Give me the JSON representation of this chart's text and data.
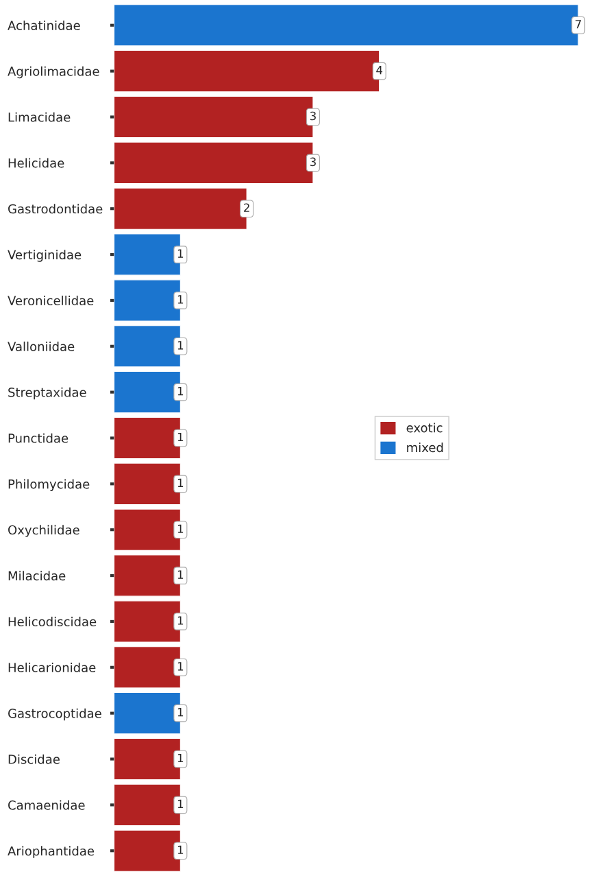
{
  "chart_data": {
    "type": "bar",
    "orientation": "horizontal",
    "categories": [
      "Achatinidae",
      "Agriolimacidae",
      "Limacidae",
      "Helicidae",
      "Gastrodontidae",
      "Vertiginidae",
      "Veronicellidae",
      "Valloniidae",
      "Streptaxidae",
      "Punctidae",
      "Philomycidae",
      "Oxychilidae",
      "Milacidae",
      "Helicodiscidae",
      "Helicarionidae",
      "Gastrocoptidae",
      "Discidae",
      "Camaenidae",
      "Ariophantidae"
    ],
    "series": [
      {
        "name": "exotic",
        "color": "#b22222",
        "values": [
          null,
          4,
          3,
          3,
          2,
          null,
          null,
          null,
          null,
          1,
          1,
          1,
          1,
          1,
          1,
          null,
          1,
          1,
          1
        ]
      },
      {
        "name": "mixed",
        "color": "#1b75cf",
        "values": [
          7,
          null,
          null,
          null,
          null,
          1,
          1,
          1,
          1,
          null,
          null,
          null,
          null,
          null,
          null,
          1,
          null,
          null,
          null
        ]
      }
    ],
    "data_labels": true,
    "legend": "right",
    "tick_labels": "y",
    "grid": false
  }
}
